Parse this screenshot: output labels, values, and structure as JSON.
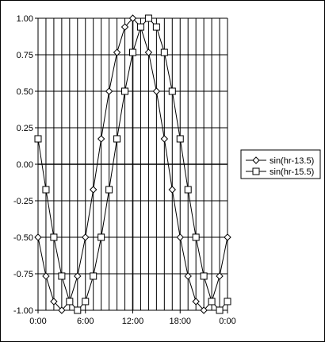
{
  "chart_data": {
    "type": "line",
    "title": "",
    "xlabel": "",
    "ylabel": "",
    "xlim": [
      0,
      24
    ],
    "ylim": [
      -1.0,
      1.0
    ],
    "x_ticks": [
      "0:00",
      "6:00",
      "12:00",
      "18:00",
      "0:00"
    ],
    "y_ticks": [
      "1.00",
      "0.75",
      "0.50",
      "0.25",
      "0.00",
      "-0.25",
      "-0.50",
      "-0.75",
      "-1.00"
    ],
    "grid": true,
    "legend_position": "right",
    "x": [
      0,
      1,
      2,
      3,
      4,
      5,
      6,
      7,
      8,
      9,
      10,
      11,
      12,
      13,
      14,
      15,
      16,
      17,
      18,
      19,
      20,
      21,
      22,
      23,
      24
    ],
    "series": [
      {
        "name": "sin(hr-13.5)",
        "marker": "diamond",
        "values": [
          -0.5,
          -0.766,
          -0.94,
          -1.0,
          -0.94,
          -0.766,
          -0.5,
          -0.174,
          0.174,
          0.5,
          0.766,
          0.94,
          1.0,
          0.94,
          0.766,
          0.5,
          0.174,
          -0.174,
          -0.5,
          -0.766,
          -0.94,
          -1.0,
          -0.94,
          -0.766,
          -0.5
        ]
      },
      {
        "name": "sin(hr-15.5)",
        "marker": "square",
        "values": [
          0.174,
          -0.174,
          -0.5,
          -0.766,
          -0.94,
          -1.0,
          -0.94,
          -0.766,
          -0.5,
          -0.174,
          0.174,
          0.5,
          0.766,
          0.94,
          1.0,
          0.94,
          0.766,
          0.5,
          0.174,
          -0.174,
          -0.5,
          -0.766,
          -0.94,
          -1.0,
          -0.94
        ]
      }
    ]
  }
}
